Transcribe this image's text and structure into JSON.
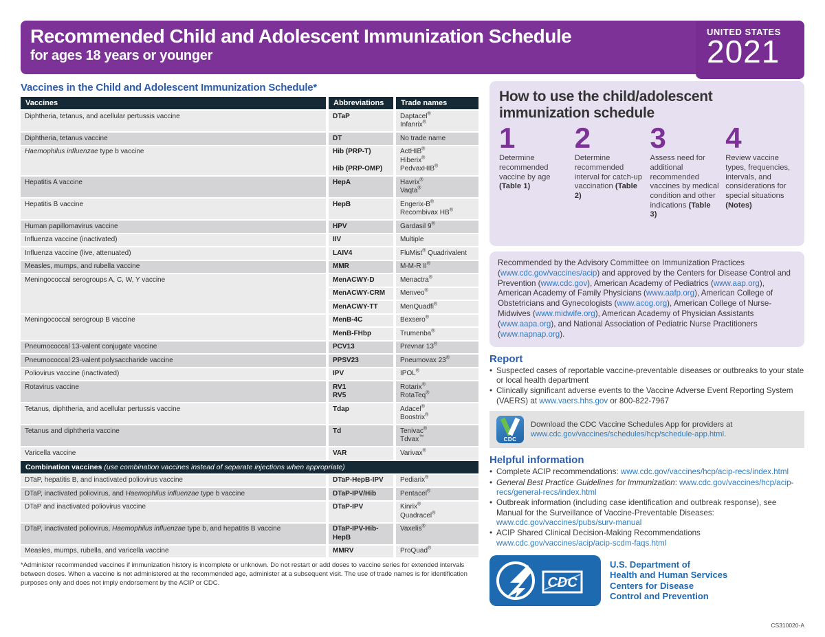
{
  "header": {
    "title": "Recommended Child and Adolescent Immunization Schedule",
    "subtitle": "for ages 18 years or younger",
    "region": "UNITED STATES",
    "year": "2021"
  },
  "colors": {
    "banner_purple": "#7c3297",
    "table_header_navy": "#162a36",
    "row_light": "#ebebeb",
    "row_dark": "#d4d4d6",
    "heading_blue": "#2b5dad",
    "link_blue": "#2f7bbe",
    "lavender_panel": "#e6e0f0",
    "hhs_blue": "#1e6ab0",
    "app_box_gray": "#e2e2e2"
  },
  "vaccines_table": {
    "title": "Vaccines in the Child and Adolescent Immunization Schedule*",
    "headers": [
      "Vaccines",
      "Abbreviations",
      "Trade names"
    ],
    "rows": [
      {
        "name": "Diphtheria, tetanus, and acellular pertussis vaccine",
        "shade": "light",
        "cells": [
          {
            "abbr": [
              "DTaP"
            ],
            "trade": [
              "Daptacel®",
              "Infanrix®"
            ]
          }
        ]
      },
      {
        "name": "Diphtheria, tetanus vaccine",
        "shade": "dark",
        "cells": [
          {
            "abbr": [
              "DT"
            ],
            "trade": [
              "No trade name"
            ]
          }
        ]
      },
      {
        "name": [
          {
            "t": "Haemophilus influenzae",
            "i": true
          },
          {
            "t": " type b vaccine"
          }
        ],
        "shade": "light",
        "cells": [
          {
            "abbr": [
              "Hib (PRP-T)",
              "Hib (PRP-OMP)"
            ],
            "trade": [
              "ActHIB®",
              "Hiberix®",
              "PedvaxHIB®"
            ]
          }
        ]
      },
      {
        "name": "Hepatitis A vaccine",
        "shade": "dark",
        "cells": [
          {
            "abbr": [
              "HepA"
            ],
            "trade": [
              "Havrix®",
              "Vaqta®"
            ]
          }
        ]
      },
      {
        "name": "Hepatitis B vaccine",
        "shade": "light",
        "cells": [
          {
            "abbr": [
              "HepB"
            ],
            "trade": [
              "Engerix-B®",
              "Recombivax HB®"
            ]
          }
        ]
      },
      {
        "name": "Human papillomavirus vaccine",
        "shade": "dark",
        "cells": [
          {
            "abbr": [
              "HPV"
            ],
            "trade": [
              "Gardasil 9®"
            ]
          }
        ]
      },
      {
        "name": "Influenza vaccine (inactivated)",
        "shade": "light",
        "cells": [
          {
            "abbr": [
              "IIV"
            ],
            "trade": [
              "Multiple"
            ]
          }
        ]
      },
      {
        "name": "Influenza vaccine (live, attenuated)",
        "shade": "light",
        "cells": [
          {
            "abbr": [
              "LAIV4"
            ],
            "trade": [
              "FluMist® Quadrivalent"
            ]
          }
        ]
      },
      {
        "name": "Measles, mumps, and rubella vaccine",
        "shade": "dark",
        "cells": [
          {
            "abbr": [
              "MMR"
            ],
            "trade": [
              "M-M-R II®"
            ]
          }
        ]
      },
      {
        "name": "Meningococcal serogroups A, C, W, Y vaccine",
        "shade": "light",
        "cells": [
          {
            "abbr": [
              "MenACWY-D"
            ],
            "trade": [
              "Menactra®"
            ]
          },
          {
            "abbr": [
              "MenACWY-CRM"
            ],
            "trade": [
              "Menveo®"
            ]
          },
          {
            "abbr": [
              "MenACWY-TT"
            ],
            "trade": [
              "MenQuadfi®"
            ]
          }
        ]
      },
      {
        "name": "Meningococcal serogroup B vaccine",
        "shade": "light",
        "cells": [
          {
            "abbr": [
              "MenB-4C"
            ],
            "trade": [
              "Bexsero®"
            ]
          },
          {
            "abbr": [
              "MenB-FHbp"
            ],
            "trade": [
              "Trumenba®"
            ]
          }
        ]
      },
      {
        "name": "Pneumococcal 13-valent conjugate vaccine",
        "shade": "dark",
        "cells": [
          {
            "abbr": [
              "PCV13"
            ],
            "trade": [
              "Prevnar 13®"
            ]
          }
        ]
      },
      {
        "name": "Pneumococcal 23-valent polysaccharide vaccine",
        "shade": "dark",
        "cells": [
          {
            "abbr": [
              "PPSV23"
            ],
            "trade": [
              "Pneumovax 23®"
            ]
          }
        ]
      },
      {
        "name": "Poliovirus vaccine (inactivated)",
        "shade": "light",
        "cells": [
          {
            "abbr": [
              "IPV"
            ],
            "trade": [
              "IPOL®"
            ]
          }
        ]
      },
      {
        "name": "Rotavirus vaccine",
        "shade": "dark",
        "cells": [
          {
            "abbr": [
              "RV1",
              "RV5"
            ],
            "trade": [
              "Rotarix®",
              "RotaTeq®"
            ]
          }
        ]
      },
      {
        "name": "Tetanus, diphtheria, and acellular pertussis vaccine",
        "shade": "light",
        "cells": [
          {
            "abbr": [
              "Tdap"
            ],
            "trade": [
              "Adacel®",
              "Boostrix®"
            ]
          }
        ]
      },
      {
        "name": "Tetanus and diphtheria vaccine",
        "shade": "dark",
        "cells": [
          {
            "abbr": [
              "Td"
            ],
            "trade": [
              "Tenivac®",
              "Tdvax™"
            ]
          }
        ]
      },
      {
        "name": "Varicella vaccine",
        "shade": "light",
        "cells": [
          {
            "abbr": [
              "VAR"
            ],
            "trade": [
              "Varivax®"
            ]
          }
        ]
      }
    ],
    "combination_header": [
      {
        "t": "Combination vaccines",
        "b": true
      },
      {
        "t": " (use combination vaccines instead of separate injections when appropriate)",
        "i": true
      }
    ],
    "combination_rows": [
      {
        "name": "DTaP, hepatitis B, and inactivated poliovirus vaccine",
        "shade": "light",
        "cells": [
          {
            "abbr": [
              "DTaP-HepB-IPV"
            ],
            "trade": [
              "Pediarix®"
            ]
          }
        ]
      },
      {
        "name": [
          {
            "t": "DTaP, inactivated poliovirus, and "
          },
          {
            "t": "Haemophilus influenzae",
            "i": true
          },
          {
            "t": " type b vaccine"
          }
        ],
        "shade": "dark",
        "cells": [
          {
            "abbr": [
              "DTaP-IPV/Hib"
            ],
            "trade": [
              "Pentacel®"
            ]
          }
        ]
      },
      {
        "name": "DTaP and inactivated poliovirus vaccine",
        "shade": "light",
        "cells": [
          {
            "abbr": [
              "DTaP-IPV"
            ],
            "trade": [
              "Kinrix®",
              "Quadracel®"
            ]
          }
        ]
      },
      {
        "name": [
          {
            "t": "DTaP, inactivated poliovirus, "
          },
          {
            "t": "Haemophilus influenzae",
            "i": true
          },
          {
            "t": " type b, and hepatitis B vaccine"
          }
        ],
        "shade": "dark",
        "cells": [
          {
            "abbr": [
              "DTaP-IPV-Hib-HepB"
            ],
            "trade": [
              "Vaxelis®"
            ]
          }
        ]
      },
      {
        "name": "Measles, mumps, rubella, and varicella vaccine",
        "shade": "light",
        "cells": [
          {
            "abbr": [
              "MMRV"
            ],
            "trade": [
              "ProQuad®"
            ]
          }
        ]
      }
    ],
    "footnote": "*Administer recommended vaccines if immunization history is incomplete or unknown. Do not restart or add doses to vaccine series for extended intervals between doses. When a vaccine is not administered at the recommended age, administer at a subsequent visit. The use of trade names is for identification purposes only and does not imply endorsement by the ACIP or CDC."
  },
  "howto": {
    "title": "How to use the child/adolescent immunization schedule",
    "steps": [
      {
        "num": "1",
        "text": "Determine recommended vaccine by age ",
        "ref": "(Table 1)"
      },
      {
        "num": "2",
        "text": "Determine recommended interval for catch-up vaccination ",
        "ref": "(Table 2)"
      },
      {
        "num": "3",
        "text": "Assess need for additional recommended vaccines by medical condition and other indications ",
        "ref": "(Table 3)"
      },
      {
        "num": "4",
        "text": "Review vaccine types, frequencies, intervals, and considerations for special situations ",
        "ref": "(Notes)"
      }
    ]
  },
  "recommended_by": [
    {
      "t": "Recommended by the Advisory Committee on Immunization Practices ("
    },
    {
      "t": "www.cdc.gov/vaccines/acip",
      "link": true
    },
    {
      "t": ") and approved by the Centers for Disease Control and Prevention ("
    },
    {
      "t": "www.cdc.gov",
      "link": true
    },
    {
      "t": "), American Academy of Pediatrics ("
    },
    {
      "t": "www.aap.org",
      "link": true
    },
    {
      "t": "), American Academy of Family Physicians ("
    },
    {
      "t": "www.aafp.org",
      "link": true
    },
    {
      "t": "), American College of Obstetricians and Gynecologists ("
    },
    {
      "t": "www.acog.org",
      "link": true
    },
    {
      "t": "), American College of Nurse-Midwives ("
    },
    {
      "t": "www.midwife.org",
      "link": true
    },
    {
      "t": "), American Academy of Physician Assistants ("
    },
    {
      "t": "www.aapa.org",
      "link": true
    },
    {
      "t": "), and National Association of Pediatric Nurse Practitioners ("
    },
    {
      "t": "www.napnap.org",
      "link": true
    },
    {
      "t": ")."
    }
  ],
  "report": {
    "heading": "Report",
    "bullets": [
      [
        {
          "t": "Suspected cases of reportable vaccine-preventable diseases or outbreaks to your state or local health department"
        }
      ],
      [
        {
          "t": "Clinically significant adverse events to the Vaccine Adverse Event Reporting System (VAERS) at "
        },
        {
          "t": "www.vaers.hhs.gov",
          "link": true
        },
        {
          "t": " or 800-822-7967"
        }
      ]
    ]
  },
  "app_box": {
    "icon_label": "CDC",
    "text": [
      {
        "t": "Download the CDC Vaccine Schedules App for providers at "
      },
      {
        "t": "www.cdc.gov/vaccines/schedules/hcp/schedule-app.html",
        "link": true
      },
      {
        "t": "."
      }
    ]
  },
  "helpful": {
    "heading": "Helpful information",
    "bullets": [
      [
        {
          "t": "Complete ACIP recommendations: "
        },
        {
          "t": "www.cdc.gov/vaccines/hcp/acip-recs/index.html",
          "link": true
        }
      ],
      [
        {
          "t": "General Best Practice Guidelines for Immunization",
          "i": true
        },
        {
          "t": ": "
        },
        {
          "t": "www.cdc.gov/vaccines/hcp/acip-recs/general-recs/index.html",
          "link": true
        }
      ],
      [
        {
          "t": "Outbreak information (including case identification and outbreak response), see Manual for the Surveillance of Vaccine-Preventable Diseases: "
        },
        {
          "t": "www.cdc.gov/vaccines/pubs/surv-manual",
          "link": true
        }
      ],
      [
        {
          "t": "ACIP Shared Clinical Decision-Making Recommendations "
        },
        {
          "t": "www.cdc.gov/vaccines/acip/acip-scdm-faqs.html",
          "link": true
        }
      ]
    ]
  },
  "footer": {
    "cdc_label": "CDC",
    "dept_lines": [
      "U.S. Department of",
      "Health and Human Services",
      "Centers for Disease",
      "Control and Prevention"
    ],
    "doc_id": "CS310020-A"
  }
}
